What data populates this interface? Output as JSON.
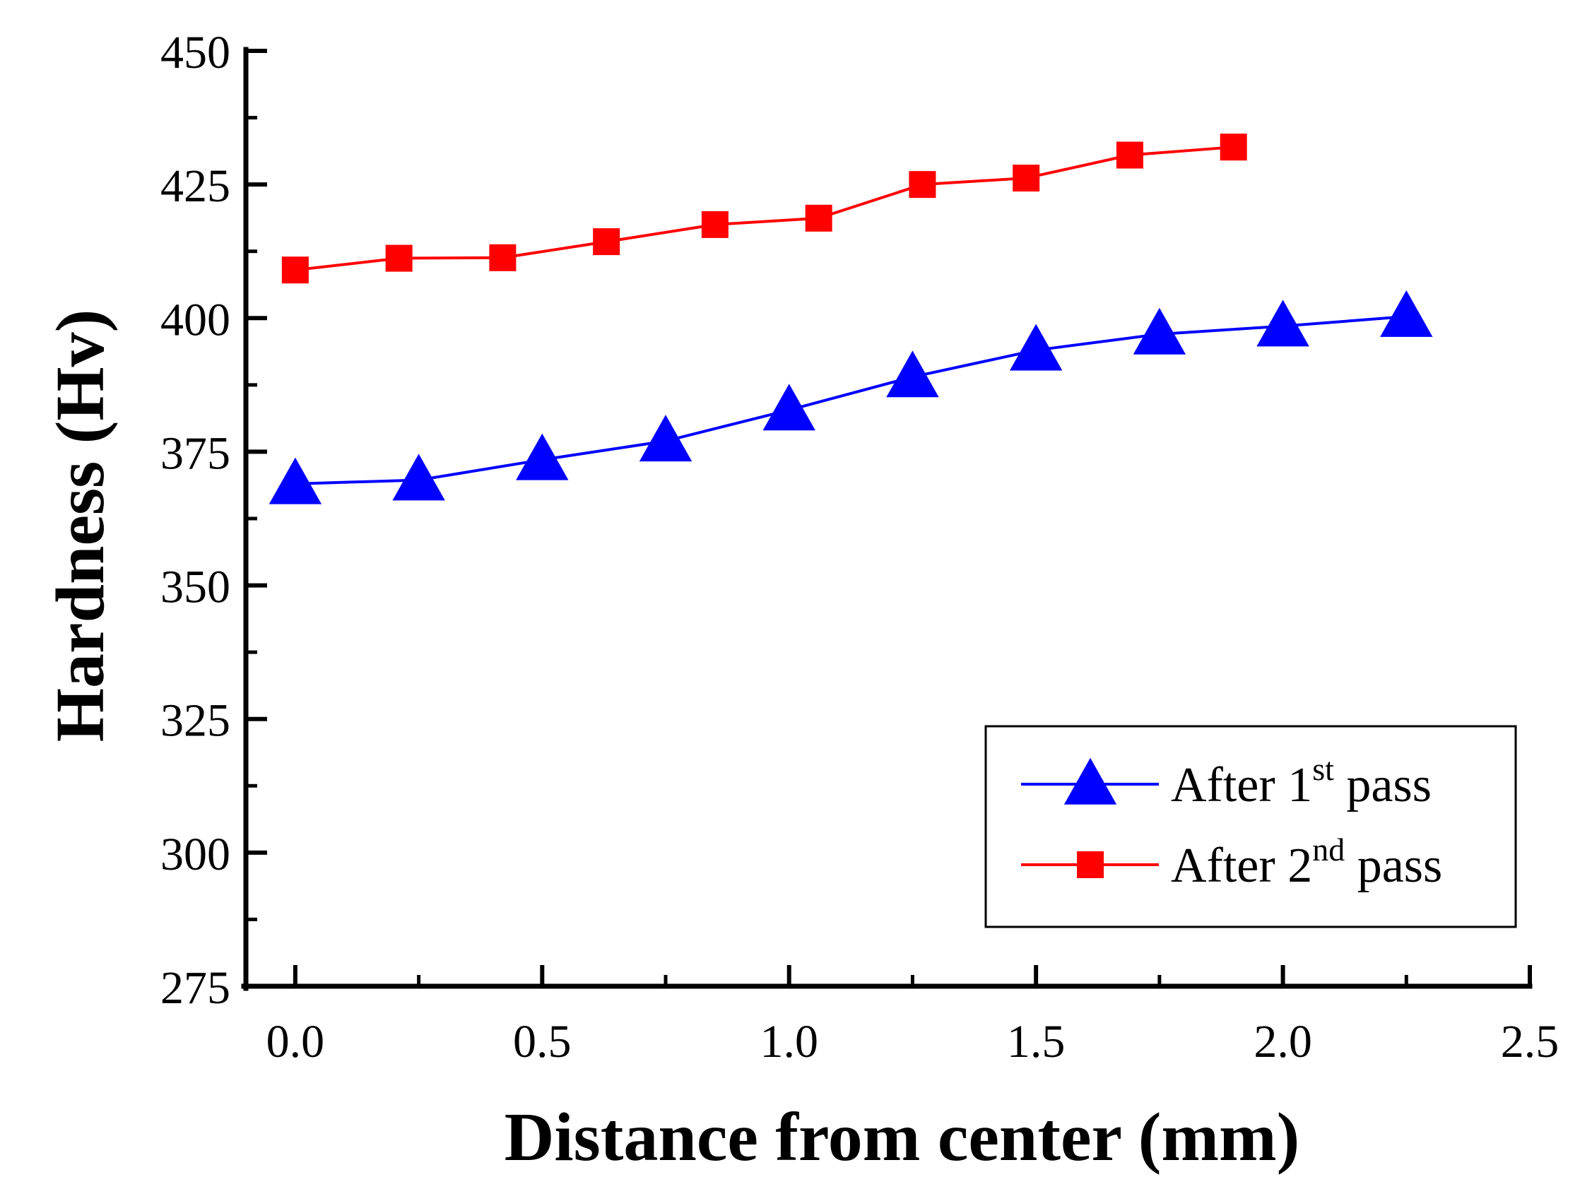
{
  "chart_data": {
    "type": "line",
    "title": "",
    "xlabel": "Distance from center (mm)",
    "ylabel": "Hardness (Hv)",
    "xlim": [
      -0.1,
      2.5
    ],
    "ylim": [
      275,
      450
    ],
    "x_ticks": [
      0.0,
      0.5,
      1.0,
      1.5,
      2.0,
      2.5
    ],
    "x_tick_labels": [
      "0.0",
      "0.5",
      "1.0",
      "1.5",
      "2.0",
      "2.5"
    ],
    "y_ticks": [
      275,
      300,
      325,
      350,
      375,
      400,
      425,
      450
    ],
    "y_tick_labels": [
      "275",
      "300",
      "325",
      "350",
      "375",
      "400",
      "425",
      "450"
    ],
    "grid": false,
    "legend_position": "bottom-right",
    "series": [
      {
        "name": "After 1st pass",
        "legend_base": "After 1",
        "legend_sup": "st",
        "legend_tail": " pass",
        "marker": "triangle",
        "color": "#0000ff",
        "x": [
          0.0,
          0.25,
          0.5,
          0.75,
          1.0,
          1.25,
          1.5,
          1.75,
          2.0,
          2.25
        ],
        "values": [
          369,
          369.7,
          373.5,
          377,
          382.8,
          389,
          394,
          397,
          398.5,
          400.3
        ]
      },
      {
        "name": "After 2nd pass",
        "legend_base": "After 2",
        "legend_sup": "nd",
        "legend_tail": " pass",
        "marker": "square",
        "color": "#ff0000",
        "x": [
          0.0,
          0.21,
          0.42,
          0.63,
          0.85,
          1.06,
          1.27,
          1.48,
          1.69,
          1.9
        ],
        "values": [
          409,
          411.2,
          411.3,
          414.3,
          417.5,
          418.7,
          425,
          426.2,
          430.5,
          432
        ]
      }
    ]
  }
}
